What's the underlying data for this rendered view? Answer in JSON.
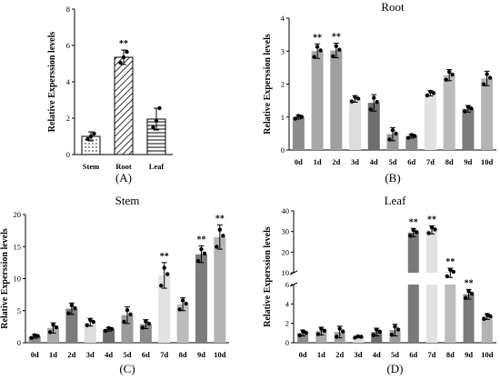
{
  "chart_data": [
    {
      "type": "bar",
      "panel_label": "(A)",
      "title": "",
      "ylabel": "Relative Experssion levels",
      "ylim": [
        0,
        8
      ],
      "yticks": [
        "0",
        "2",
        "4",
        "6",
        "8"
      ],
      "categories": [
        "Stem",
        "Root",
        "Leaf"
      ],
      "values": [
        1.0,
        5.35,
        1.95
      ],
      "errors": [
        0.25,
        0.4,
        0.6
      ],
      "points": [
        [
          0.85,
          1.0,
          1.15
        ],
        [
          5.05,
          5.35,
          5.65
        ],
        [
          1.5,
          1.85,
          2.55
        ]
      ],
      "significance": [
        "",
        "**",
        ""
      ],
      "patterns": [
        "dots",
        "diag",
        "hlines"
      ]
    },
    {
      "type": "bar",
      "panel_label": "(B)",
      "title": "Root",
      "ylabel": "Relative Experssion levels",
      "ylim": [
        0,
        4
      ],
      "yticks": [
        "0",
        "1",
        "2",
        "3",
        "4"
      ],
      "categories": [
        "0d",
        "1d",
        "2d",
        "3d",
        "4d",
        "5d",
        "6d",
        "7d",
        "8d",
        "9d",
        "10d"
      ],
      "values": [
        1.0,
        3.0,
        3.02,
        1.55,
        1.43,
        0.48,
        0.42,
        1.72,
        2.27,
        1.25,
        2.17
      ],
      "errors": [
        0.06,
        0.22,
        0.22,
        0.1,
        0.25,
        0.2,
        0.06,
        0.08,
        0.17,
        0.1,
        0.22
      ],
      "significance": [
        "",
        "**",
        "**",
        "",
        "",
        "",
        "",
        "",
        "",
        "",
        ""
      ],
      "colors": [
        "#8c8c8c",
        "#a8a8a8",
        "#a0a0a0",
        "#dcdcdc",
        "#6e6e6e",
        "#9a9a9a",
        "#8a8a8a",
        "#e2e2e2",
        "#bcbcbc",
        "#7c7c7c",
        "#b4b4b4"
      ]
    },
    {
      "type": "bar",
      "panel_label": "(C)",
      "title": "Stem",
      "ylabel": "Relative Experssion levels",
      "ylim": [
        0,
        20
      ],
      "yticks": [
        "0",
        "5",
        "10",
        "15",
        "20"
      ],
      "categories": [
        "0d",
        "1d",
        "2d",
        "3d",
        "4d",
        "5d",
        "6d",
        "7d",
        "8d",
        "9d",
        "10d"
      ],
      "values": [
        1.0,
        2.3,
        5.3,
        3.2,
        2.1,
        4.3,
        2.9,
        10.5,
        6.0,
        13.8,
        16.5
      ],
      "errors": [
        0.3,
        0.8,
        0.9,
        0.6,
        0.3,
        1.3,
        0.7,
        2.0,
        1.0,
        1.3,
        1.9
      ],
      "significance": [
        "",
        "",
        "",
        "",
        "",
        "",
        "",
        "**",
        "",
        "**",
        "**"
      ],
      "colors": [
        "#8c8c8c",
        "#a8a8a8",
        "#7c7c7c",
        "#dcdcdc",
        "#6e6e6e",
        "#9a9a9a",
        "#8a8a8a",
        "#e2e2e2",
        "#bcbcbc",
        "#7c7c7c",
        "#b4b4b4"
      ]
    },
    {
      "type": "bar",
      "panel_label": "(D)",
      "title": "Leaf",
      "ylabel": "Relative Experssion levels",
      "axis_break": true,
      "lower_range": [
        0,
        6
      ],
      "upper_range": [
        10,
        40
      ],
      "yticks_lower": [
        "0",
        "2",
        "4",
        "6"
      ],
      "yticks_upper": [
        "10",
        "20",
        "30",
        "40"
      ],
      "categories": [
        "0d",
        "1d",
        "2d",
        "3d",
        "4d",
        "5d",
        "6d",
        "7d",
        "8d",
        "9d",
        "10d"
      ],
      "values": [
        1.0,
        1.2,
        1.1,
        0.6,
        1.1,
        1.3,
        29.5,
        30.8,
        10.3,
        5.0,
        2.7
      ],
      "errors": [
        0.3,
        0.4,
        0.6,
        0.1,
        0.4,
        0.6,
        2.0,
        2.0,
        1.9,
        0.5,
        0.3
      ],
      "significance": [
        "",
        "",
        "",
        "",
        "",
        "",
        "**",
        "**",
        "**",
        "**",
        ""
      ],
      "colors": [
        "#8c8c8c",
        "#a8a8a8",
        "#a0a0a0",
        "#dcdcdc",
        "#6e6e6e",
        "#9a9a9a",
        "#7a7a7a",
        "#e2e2e2",
        "#bcbcbc",
        "#7c7c7c",
        "#b4b4b4"
      ]
    }
  ]
}
